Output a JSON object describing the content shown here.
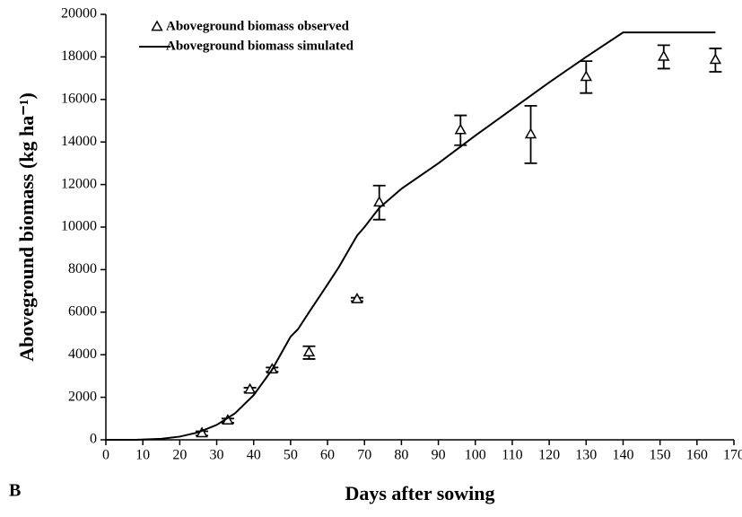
{
  "chart_data": {
    "type": "scatter-line",
    "x_label": "Days after sowing",
    "y_label": "Aboveground biomass (kg ha⁻¹)",
    "annotation": "B",
    "xlim": [
      0,
      170
    ],
    "xticks": [
      0,
      10,
      20,
      30,
      40,
      50,
      60,
      70,
      80,
      90,
      100,
      110,
      120,
      130,
      140,
      150,
      160,
      170
    ],
    "ylim": [
      0,
      20000
    ],
    "yticks": [
      0,
      2000,
      4000,
      6000,
      8000,
      10000,
      12000,
      14000,
      16000,
      18000,
      20000
    ],
    "legend": "top-left",
    "series": [
      {
        "name": "Aboveground biomass observed",
        "color": "#000000",
        "marker": "triangle",
        "x": [
          26,
          33,
          39,
          45,
          55,
          68,
          74,
          96,
          115,
          130,
          151,
          165
        ],
        "values": [
          300,
          900,
          2350,
          3300,
          4100,
          6600,
          11150,
          14550,
          14350,
          17050,
          18000,
          17850
        ],
        "errors": [
          100,
          100,
          100,
          100,
          300,
          80,
          800,
          700,
          1350,
          750,
          550,
          550
        ]
      },
      {
        "name": "Aboveground biomass simulated",
        "color": "#000000",
        "marker": "line",
        "x": [
          0,
          8,
          15,
          20,
          25,
          30,
          35,
          40,
          45,
          50,
          52,
          55,
          60,
          63,
          65,
          68,
          70,
          74,
          80,
          90,
          100,
          110,
          120,
          130,
          140,
          165
        ],
        "values": [
          0,
          0,
          50,
          150,
          350,
          700,
          1250,
          2100,
          3300,
          4850,
          5200,
          6000,
          7300,
          8100,
          8700,
          9600,
          10000,
          10900,
          11800,
          13000,
          14300,
          15550,
          16800,
          18000,
          19150,
          19150
        ]
      }
    ]
  }
}
